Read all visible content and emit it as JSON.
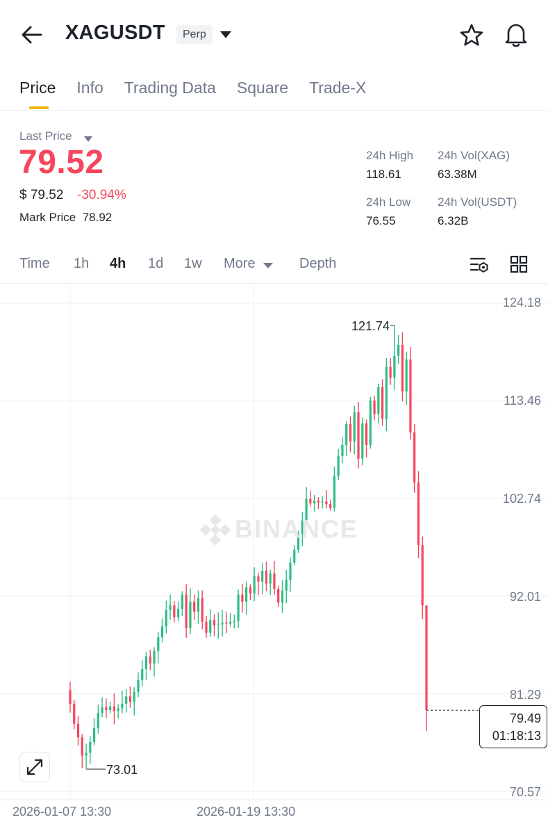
{
  "header": {
    "title": "XAGUSDT",
    "badge": "Perp",
    "icons": [
      "back-arrow-icon",
      "caret-down-icon",
      "star-icon",
      "bell-icon"
    ]
  },
  "tabs": [
    {
      "label": "Price",
      "active": true
    },
    {
      "label": "Info",
      "active": false
    },
    {
      "label": "Trading Data",
      "active": false
    },
    {
      "label": "Square",
      "active": false
    },
    {
      "label": "Trade-X",
      "active": false
    }
  ],
  "price": {
    "label": "Last Price",
    "last": "79.52",
    "usd": "$ 79.52",
    "change": "-30.94%",
    "mark_label": "Mark Price",
    "mark_value": "78.92"
  },
  "stats": {
    "high_label": "24h High",
    "high_value": "118.61",
    "low_label": "24h Low",
    "low_value": "76.55",
    "vol_base_label": "24h Vol(XAG)",
    "vol_base_value": "63.38M",
    "vol_quote_label": "24h Vol(USDT)",
    "vol_quote_value": "6.32B"
  },
  "intervals": [
    {
      "label": "Time",
      "active": false
    },
    {
      "label": "1h",
      "active": false
    },
    {
      "label": "4h",
      "active": true
    },
    {
      "label": "1d",
      "active": false
    },
    {
      "label": "1w",
      "active": false
    },
    {
      "label": "More",
      "active": false
    },
    {
      "label": "Depth",
      "active": false
    }
  ],
  "colors": {
    "up": "#2ebd85",
    "down": "#f6465d",
    "accent": "#f0b90b",
    "text": "#1e2329",
    "muted": "#707a8a"
  },
  "watermark": "BINANCE",
  "chart_data": {
    "type": "candlestick",
    "interval": "4h",
    "y_ticks": [
      "124.18",
      "113.46",
      "102.74",
      "92.01",
      "81.29",
      "70.57"
    ],
    "ylim": [
      70.57,
      124.18
    ],
    "x_ticks": [
      "2026-01-07 13:30",
      "2026-01-19 13:30"
    ],
    "max_label": "121.74",
    "min_label": "73.01",
    "max_value": 121.74,
    "min_value": 73.01,
    "current_price": "79.49",
    "current_value": 79.49,
    "countdown": "01:18:13",
    "close_path": [
      80.2,
      78.0,
      76.5,
      74.5,
      74.8,
      76.0,
      77.5,
      79.2,
      79.8,
      79.5,
      79.9,
      79.4,
      79.7,
      80.2,
      81.0,
      80.4,
      81.5,
      82.8,
      84.0,
      85.4,
      84.6,
      86.0,
      87.5,
      88.7,
      90.5,
      91.0,
      89.7,
      90.6,
      92.2,
      88.5,
      91.4,
      90.3,
      91.8,
      89.2,
      88.0,
      89.4,
      88.8,
      88.9,
      89.1,
      89.0,
      89.2,
      89.3,
      92.2,
      91.4,
      93.0,
      92.3,
      94.2,
      93.6,
      94.8,
      93.4,
      94.5,
      92.8,
      91.3,
      92.6,
      93.8,
      95.7,
      97.1,
      98.8,
      100.3,
      102.7,
      102.2,
      102.5,
      102.3,
      102.4,
      102.1,
      101.7,
      105.2,
      107.4,
      108.6,
      110.9,
      109.0,
      112.2,
      107.1,
      111.0,
      108.6,
      113.5,
      112.0,
      115.0,
      111.5,
      117.2,
      116.0,
      118.4,
      119.6,
      114.5,
      118.0,
      110.0,
      104.5,
      97.6,
      91.0,
      79.5
    ]
  }
}
